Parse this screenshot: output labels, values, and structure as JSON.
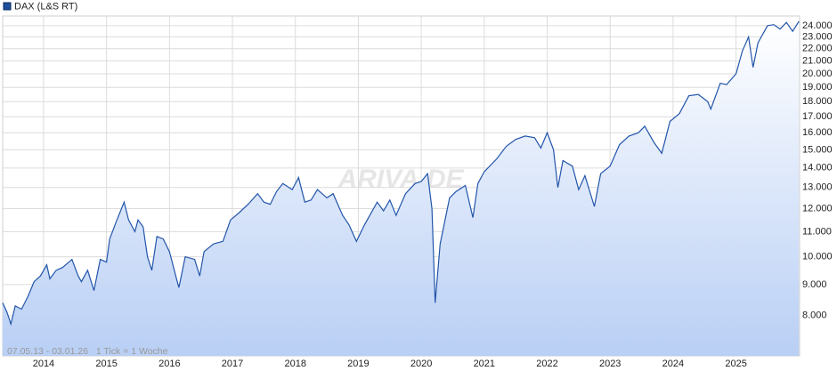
{
  "chart_data": {
    "type": "line",
    "legend": "DAX (L&S RT)",
    "note": "07.05.13 - 03.01.26   1 Tick = 1 Woche",
    "watermark": "ARIVA.DE",
    "color": "#2255aa",
    "log": true,
    "grid": true,
    "xlim": [
      2013.35,
      2026.01
    ],
    "xticks": [
      2014,
      2015,
      2016,
      2017,
      2018,
      2019,
      2020,
      2021,
      2022,
      2023,
      2024,
      2025
    ],
    "ylim": [
      6870,
      24900
    ],
    "yticks": [
      {
        "value": 8000,
        "label": "8.000"
      },
      {
        "value": 9000,
        "label": "9.000"
      },
      {
        "value": 10000,
        "label": "10.000"
      },
      {
        "value": 11000,
        "label": "11.000"
      },
      {
        "value": 12000,
        "label": "12.000"
      },
      {
        "value": 13000,
        "label": "13.000"
      },
      {
        "value": 14000,
        "label": "14.000"
      },
      {
        "value": 15000,
        "label": "15.000"
      },
      {
        "value": 16000,
        "label": "16.000"
      },
      {
        "value": 17000,
        "label": "17.000"
      },
      {
        "value": 18000,
        "label": "18.000"
      },
      {
        "value": 19000,
        "label": "19.000"
      },
      {
        "value": 20000,
        "label": "20.000"
      },
      {
        "value": 21000,
        "label": "21.000"
      },
      {
        "value": 22000,
        "label": "22.000"
      },
      {
        "value": 23000,
        "label": "23.000"
      },
      {
        "value": 24000,
        "label": "24.000"
      }
    ],
    "x": [
      2013.35,
      2013.42,
      2013.48,
      2013.55,
      2013.65,
      2013.75,
      2013.85,
      2013.95,
      2014.05,
      2014.1,
      2014.2,
      2014.3,
      2014.45,
      2014.55,
      2014.6,
      2014.7,
      2014.8,
      2014.9,
      2015.0,
      2015.05,
      2015.15,
      2015.28,
      2015.35,
      2015.45,
      2015.5,
      2015.58,
      2015.65,
      2015.72,
      2015.8,
      2015.9,
      2016.0,
      2016.1,
      2016.15,
      2016.25,
      2016.4,
      2016.48,
      2016.55,
      2016.7,
      2016.85,
      2016.97,
      2017.1,
      2017.25,
      2017.4,
      2017.5,
      2017.6,
      2017.7,
      2017.8,
      2017.95,
      2018.05,
      2018.15,
      2018.25,
      2018.35,
      2018.5,
      2018.6,
      2018.75,
      2018.85,
      2018.97,
      2019.1,
      2019.3,
      2019.4,
      2019.5,
      2019.6,
      2019.75,
      2019.9,
      2020.0,
      2020.1,
      2020.17,
      2020.22,
      2020.3,
      2020.45,
      2020.55,
      2020.7,
      2020.82,
      2020.9,
      2021.0,
      2021.2,
      2021.35,
      2021.5,
      2021.65,
      2021.8,
      2021.9,
      2022.0,
      2022.1,
      2022.17,
      2022.25,
      2022.4,
      2022.5,
      2022.6,
      2022.75,
      2022.85,
      2023.0,
      2023.15,
      2023.3,
      2023.45,
      2023.55,
      2023.7,
      2023.82,
      2023.95,
      2024.1,
      2024.25,
      2024.4,
      2024.55,
      2024.6,
      2024.75,
      2024.85,
      2025.0,
      2025.1,
      2025.2,
      2025.27,
      2025.35,
      2025.5,
      2025.6,
      2025.7,
      2025.8,
      2025.9,
      2026.0
    ],
    "values": [
      8400,
      8100,
      7750,
      8300,
      8200,
      8600,
      9100,
      9300,
      9700,
      9200,
      9500,
      9600,
      9900,
      9300,
      9100,
      9500,
      8800,
      9900,
      9800,
      10700,
      11400,
      12300,
      11500,
      11000,
      11500,
      11200,
      10000,
      9500,
      10800,
      10700,
      10200,
      9300,
      8900,
      10000,
      9900,
      9300,
      10200,
      10500,
      10600,
      11500,
      11800,
      12200,
      12700,
      12300,
      12200,
      12800,
      13200,
      12900,
      13500,
      12300,
      12400,
      12900,
      12500,
      12700,
      11700,
      11300,
      10600,
      11300,
      12300,
      11900,
      12400,
      11700,
      12700,
      13200,
      13300,
      13700,
      12000,
      8400,
      10500,
      12500,
      12800,
      13100,
      11600,
      13200,
      13800,
      14500,
      15200,
      15600,
      15800,
      15700,
      15100,
      16000,
      15000,
      13000,
      14400,
      14100,
      12900,
      13600,
      12100,
      13700,
      14100,
      15300,
      15800,
      16000,
      16400,
      15400,
      14800,
      16700,
      17200,
      18400,
      18500,
      18000,
      17500,
      19300,
      19200,
      20000,
      21800,
      23000,
      20500,
      22500,
      24000,
      24100,
      23700,
      24300,
      23500,
      24400
    ]
  }
}
